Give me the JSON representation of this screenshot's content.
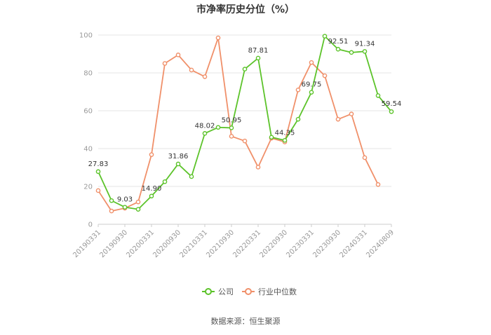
{
  "chart_data": {
    "type": "line",
    "title": "市净率历史分位（%）",
    "source": "数据来源：恒生聚源",
    "ylim": [
      0,
      100
    ],
    "yticks": [
      0,
      20,
      40,
      60,
      80,
      100
    ],
    "x_tick_labels": [
      "20190331",
      "20190930",
      "20200331",
      "20200930",
      "20210331",
      "20210930",
      "20220331",
      "20220930",
      "20230331",
      "20230930",
      "20240331",
      "20240809"
    ],
    "x": [
      "20190331",
      "20190630",
      "20190930",
      "20191231",
      "20200331",
      "20200630",
      "20200930",
      "20201231",
      "20210331",
      "20210630",
      "20210930",
      "20211231",
      "20220331",
      "20220630",
      "20220930",
      "20221231",
      "20230331",
      "20230630",
      "20230930",
      "20231231",
      "20240331",
      "20240630",
      "20240809"
    ],
    "grid": true,
    "legend_position": "bottom",
    "series": [
      {
        "name": "公司",
        "color": "#5cc32a",
        "values": [
          27.83,
          12.5,
          9.03,
          7.9,
          14.9,
          22.5,
          31.86,
          25.2,
          48.02,
          51.2,
          50.95,
          82.0,
          87.81,
          46.0,
          44.35,
          55.5,
          69.75,
          99.4,
          92.51,
          90.8,
          91.34,
          68.0,
          59.54
        ],
        "labels": [
          "27.83",
          null,
          "9.03",
          null,
          "14.90",
          null,
          "31.86",
          null,
          "48.02",
          null,
          "50.95",
          null,
          "87.81",
          null,
          "44.35",
          null,
          "69.75",
          null,
          "92.51",
          null,
          "91.34",
          null,
          "59.54"
        ]
      },
      {
        "name": "行业中位数",
        "color": "#f0906a",
        "values": [
          17.8,
          7.0,
          8.5,
          11.8,
          36.8,
          85.0,
          89.5,
          81.5,
          78.0,
          98.5,
          46.5,
          44.0,
          30.2,
          45.5,
          43.5,
          71.0,
          85.5,
          78.5,
          55.5,
          58.3,
          35.2,
          21.0,
          null
        ]
      }
    ]
  }
}
